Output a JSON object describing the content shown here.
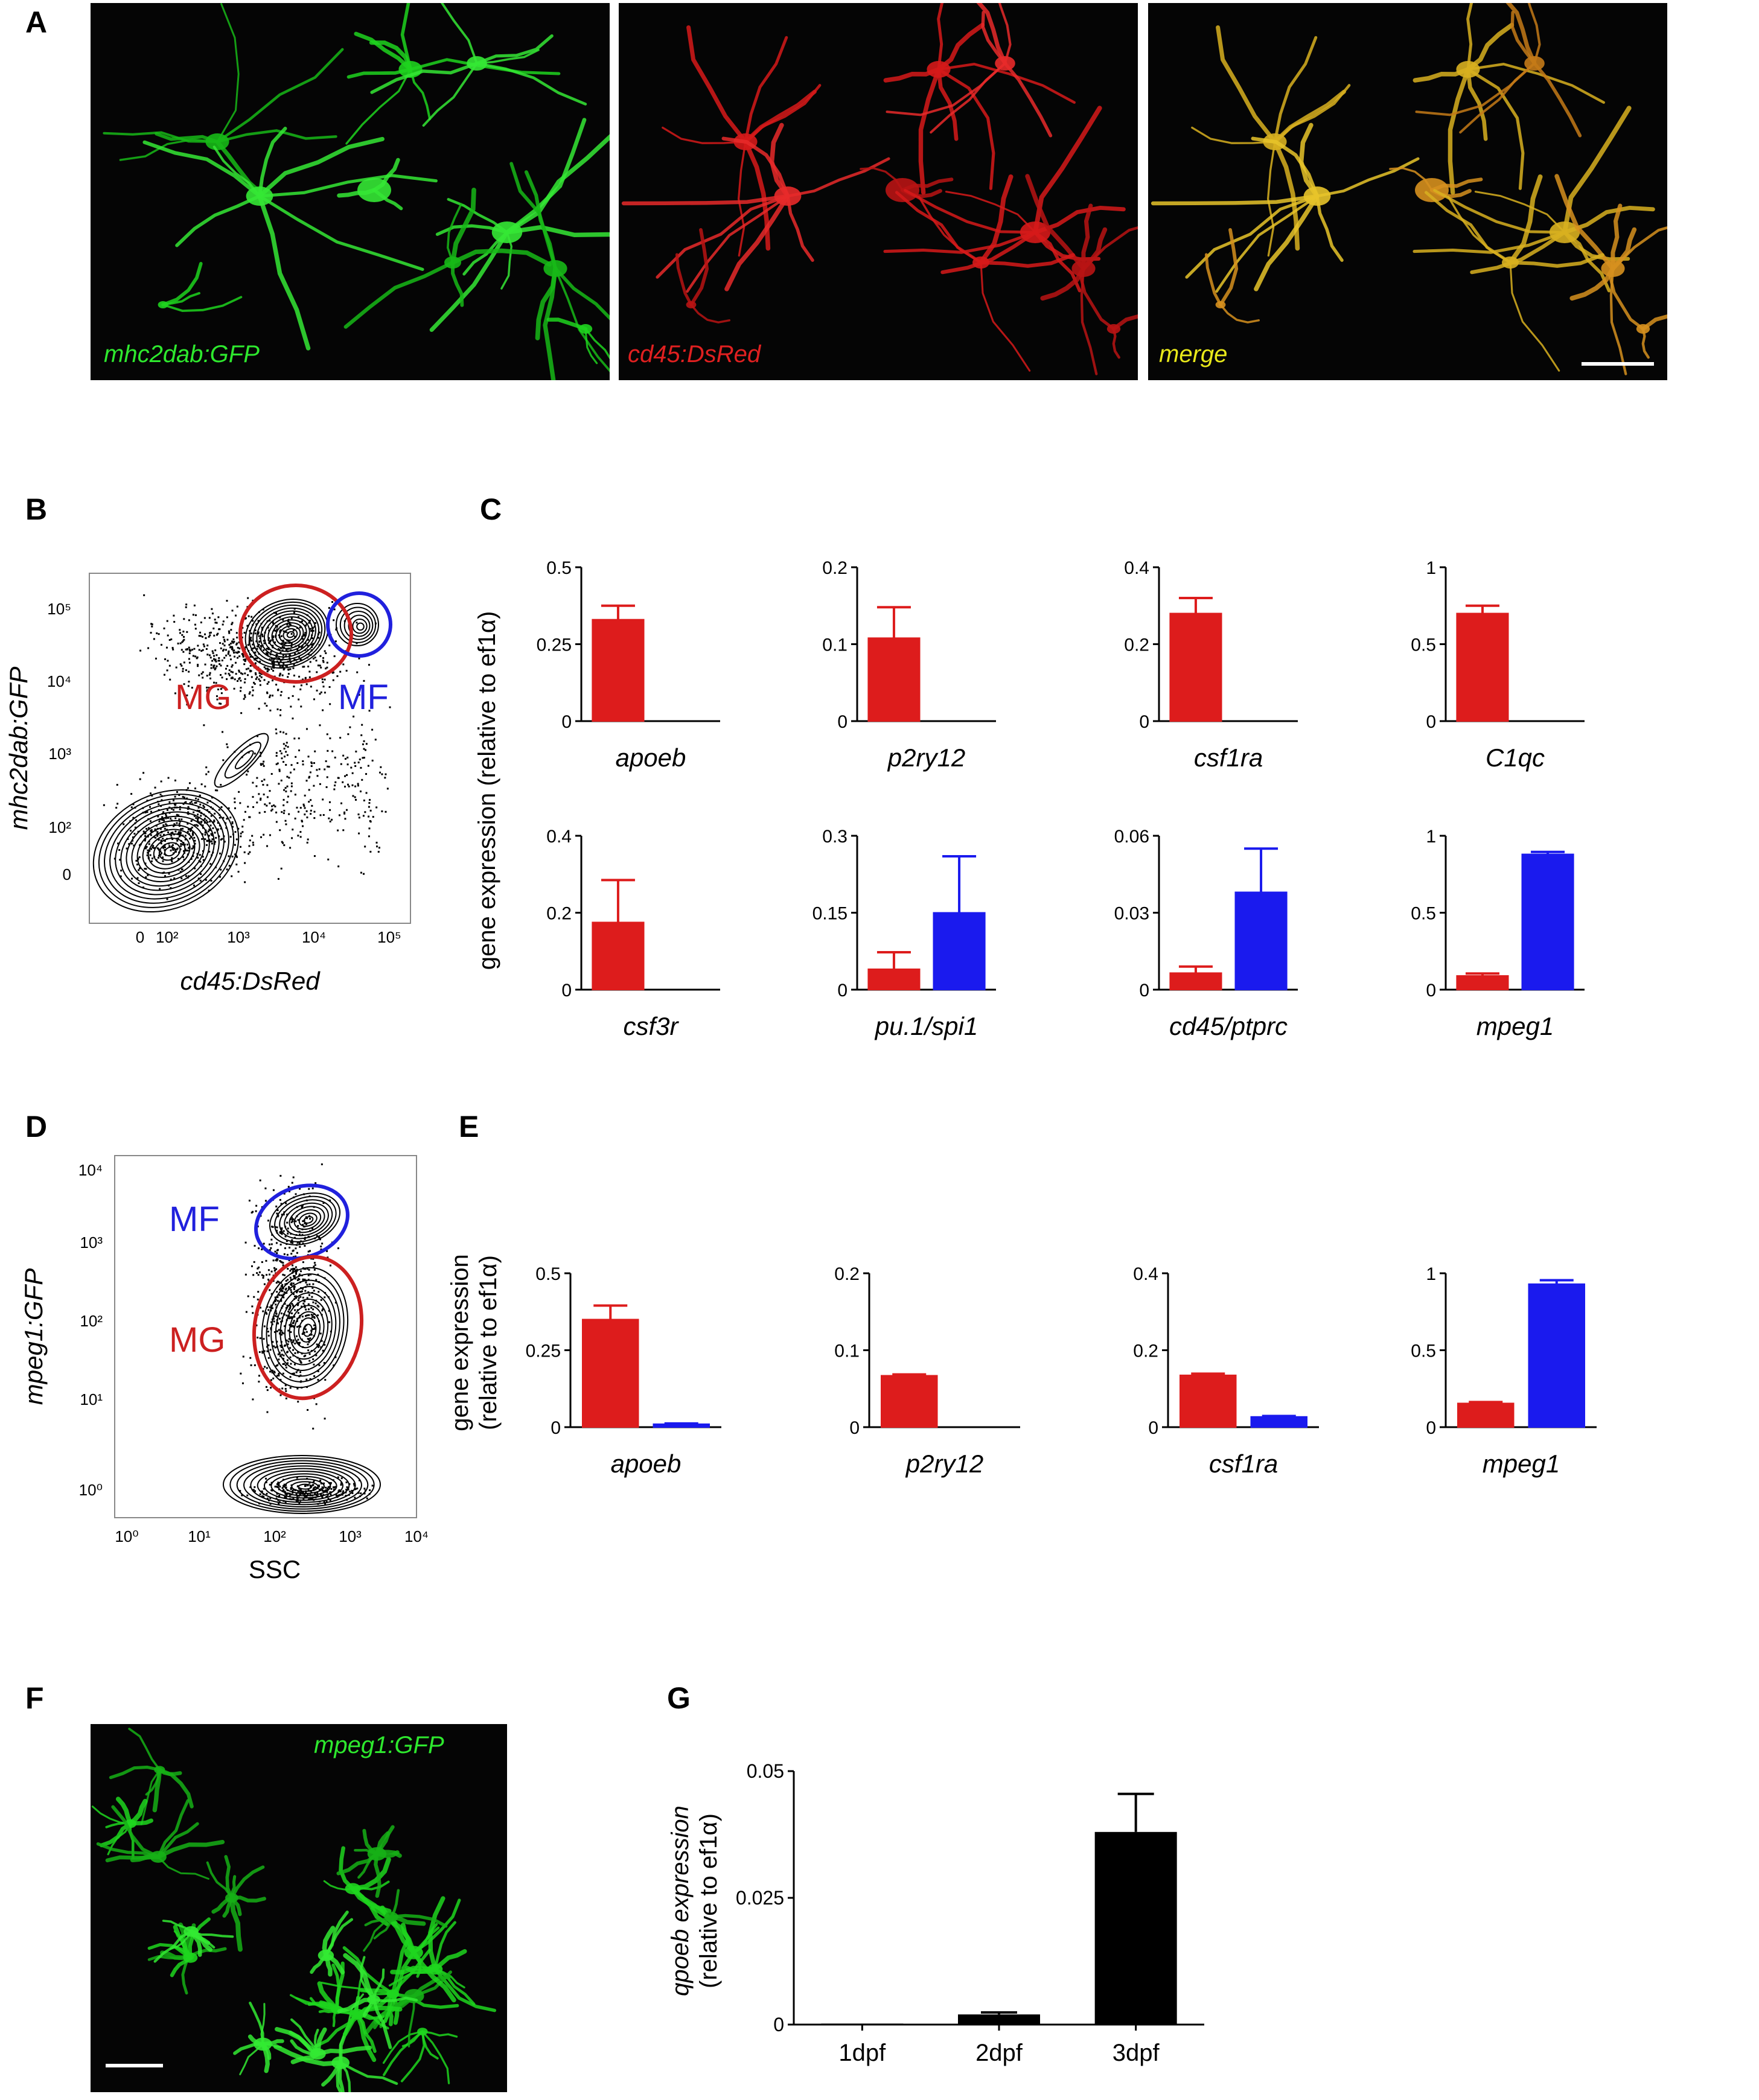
{
  "panels": {
    "A": {
      "label": "A",
      "captions": [
        "mhc2dab:GFP",
        "cd45:DsRed",
        "merge"
      ],
      "colors": [
        "#2ee82e",
        "#e02020",
        "#e8e81a"
      ]
    },
    "B": {
      "label": "B",
      "xlabel": "cd45:DsRed",
      "ylabel": "mhc2dab:GFP",
      "xticks": [
        "0",
        "10²",
        "10³",
        "10⁴",
        "10⁵"
      ],
      "yticks": [
        "10⁵",
        "10⁴",
        "10³",
        "10²",
        "0"
      ],
      "gates": [
        {
          "name": "MG",
          "color": "#cc2020"
        },
        {
          "name": "MF",
          "color": "#2020dd"
        }
      ]
    },
    "C": {
      "label": "C",
      "ylabel": "gene expression (relative to ef1α)"
    },
    "D": {
      "label": "D",
      "xlabel": "SSC",
      "ylabel": "mpeg1:GFP",
      "xticks": [
        "10⁰",
        "10¹",
        "10²",
        "10³",
        "10⁴"
      ],
      "yticks": [
        "10⁴",
        "10³",
        "10²",
        "10¹",
        "10⁰"
      ],
      "gates": [
        {
          "name": "MF",
          "color": "#2020dd"
        },
        {
          "name": "MG",
          "color": "#cc2020"
        }
      ]
    },
    "E": {
      "label": "E",
      "ylabel_line1": "gene expression",
      "ylabel_line2": "(relative to ef1α)"
    },
    "F": {
      "label": "F",
      "caption": "mpeg1:GFP"
    },
    "G": {
      "label": "G",
      "ylabel_line1": "qpoeb expression",
      "ylabel_line2": "(relative to ef1α)"
    }
  },
  "colors": {
    "MG": "#dd1c1c",
    "MF": "#1a1aee",
    "black": "#000000"
  },
  "chart_data": [
    {
      "panel": "C",
      "type": "bar",
      "xlabel": "apoeb",
      "ylim": [
        0,
        0.5
      ],
      "yticks": [
        0,
        0.25,
        0.5
      ],
      "ytick_labels": [
        "0",
        "0.25",
        "0.5"
      ],
      "series": [
        {
          "values": [
            0.33
          ],
          "errors": [
            0.045
          ]
        },
        {
          "values": [
            0
          ],
          "errors": [
            0
          ]
        }
      ]
    },
    {
      "panel": "C",
      "type": "bar",
      "xlabel": "p2ry12",
      "ylim": [
        0,
        0.2
      ],
      "yticks": [
        0,
        0.1,
        0.2
      ],
      "ytick_labels": [
        "0",
        "0.1",
        "0.2"
      ],
      "series": [
        {
          "values": [
            0.108
          ],
          "errors": [
            0.04
          ]
        },
        {
          "values": [
            0
          ],
          "errors": [
            0
          ]
        }
      ]
    },
    {
      "panel": "C",
      "type": "bar",
      "xlabel": "csf1ra",
      "ylim": [
        0,
        0.4
      ],
      "yticks": [
        0,
        0.2,
        0.4
      ],
      "ytick_labels": [
        "0",
        "0.2",
        "0.4"
      ],
      "series": [
        {
          "values": [
            0.28
          ],
          "errors": [
            0.04
          ]
        },
        {
          "values": [
            0
          ],
          "errors": [
            0
          ]
        }
      ]
    },
    {
      "panel": "C",
      "type": "bar",
      "xlabel": "C1qc",
      "ylim": [
        0,
        1
      ],
      "yticks": [
        0,
        0.5,
        1
      ],
      "ytick_labels": [
        "0",
        "0.5",
        "1"
      ],
      "series": [
        {
          "values": [
            0.7
          ],
          "errors": [
            0.05
          ]
        },
        {
          "values": [
            0
          ],
          "errors": [
            0
          ]
        }
      ]
    },
    {
      "panel": "C",
      "type": "bar",
      "xlabel": "csf3r",
      "ylim": [
        0,
        0.4
      ],
      "yticks": [
        0,
        0.2,
        0.4
      ],
      "ytick_labels": [
        "0",
        "0.2",
        "0.4"
      ],
      "series": [
        {
          "values": [
            0.175
          ],
          "errors": [
            0.11
          ]
        },
        {
          "values": [
            0
          ],
          "errors": [
            0
          ]
        }
      ]
    },
    {
      "panel": "C",
      "type": "bar",
      "xlabel": "pu.1/spi1",
      "ylim": [
        0,
        0.3
      ],
      "yticks": [
        0,
        0.15,
        0.3
      ],
      "ytick_labels": [
        "0",
        "0.15",
        "0.3"
      ],
      "series": [
        {
          "values": [
            0.04
          ],
          "errors": [
            0.033
          ]
        },
        {
          "values": [
            0.15
          ],
          "errors": [
            0.11
          ]
        }
      ]
    },
    {
      "panel": "C",
      "type": "bar",
      "xlabel": "cd45/ptprc",
      "ylim": [
        0,
        0.06
      ],
      "yticks": [
        0,
        0.03,
        0.06
      ],
      "ytick_labels": [
        "0",
        "0.03",
        "0.06"
      ],
      "series": [
        {
          "values": [
            0.0065
          ],
          "errors": [
            0.0025
          ]
        },
        {
          "values": [
            0.038
          ],
          "errors": [
            0.017
          ]
        }
      ]
    },
    {
      "panel": "C",
      "type": "bar",
      "xlabel": "mpeg1",
      "ylim": [
        0,
        1
      ],
      "yticks": [
        0,
        0.5,
        1
      ],
      "ytick_labels": [
        "0",
        "0.5",
        "1"
      ],
      "series": [
        {
          "values": [
            0.09
          ],
          "errors": [
            0.015
          ]
        },
        {
          "values": [
            0.88
          ],
          "errors": [
            0.015
          ]
        }
      ]
    },
    {
      "panel": "E",
      "type": "bar",
      "xlabel": "apoeb",
      "ylim": [
        0,
        0.5
      ],
      "yticks": [
        0,
        0.25,
        0.5
      ],
      "ytick_labels": [
        "0",
        "0.25",
        "0.5"
      ],
      "series": [
        {
          "values": [
            0.35
          ],
          "errors": [
            0.045
          ]
        },
        {
          "values": [
            0.01
          ],
          "errors": [
            0.002
          ]
        }
      ]
    },
    {
      "panel": "E",
      "type": "bar",
      "xlabel": "p2ry12",
      "ylim": [
        0,
        0.2
      ],
      "yticks": [
        0,
        0.1,
        0.2
      ],
      "ytick_labels": [
        "0",
        "0.1",
        "0.2"
      ],
      "series": [
        {
          "values": [
            0.067
          ],
          "errors": [
            0.0015
          ]
        },
        {
          "values": [
            0
          ],
          "errors": [
            0
          ]
        }
      ]
    },
    {
      "panel": "E",
      "type": "bar",
      "xlabel": "csf1ra",
      "ylim": [
        0,
        0.4
      ],
      "yticks": [
        0,
        0.2,
        0.4
      ],
      "ytick_labels": [
        "0",
        "0.2",
        "0.4"
      ],
      "series": [
        {
          "values": [
            0.135
          ],
          "errors": [
            0.004
          ]
        },
        {
          "values": [
            0.027
          ],
          "errors": [
            0.002
          ]
        }
      ]
    },
    {
      "panel": "E",
      "type": "bar",
      "xlabel": "mpeg1",
      "ylim": [
        0,
        1
      ],
      "yticks": [
        0,
        0.5,
        1
      ],
      "ytick_labels": [
        "0",
        "0.5",
        "1"
      ],
      "series": [
        {
          "values": [
            0.155
          ],
          "errors": [
            0.008
          ]
        },
        {
          "values": [
            0.93
          ],
          "errors": [
            0.025
          ]
        }
      ]
    },
    {
      "panel": "G",
      "type": "bar",
      "categories": [
        "1dpf",
        "2dpf",
        "3dpf"
      ],
      "ylim": [
        0,
        0.05
      ],
      "yticks": [
        0,
        0.025,
        0.05
      ],
      "ytick_labels": [
        "0",
        "0.025",
        "0.05"
      ],
      "series": [
        {
          "values": [
            0.0002,
            0.002,
            0.038
          ],
          "errors": [
            0,
            0.0004,
            0.0075
          ]
        }
      ]
    }
  ]
}
